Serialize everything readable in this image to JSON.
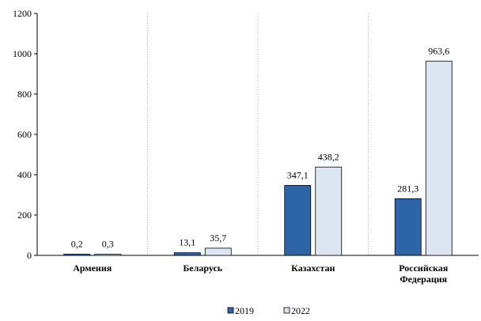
{
  "chart_data": {
    "type": "bar",
    "categories": [
      [
        "Армения"
      ],
      [
        "Беларусь"
      ],
      [
        "Казахстан"
      ],
      [
        "Российская",
        "Федерация"
      ]
    ],
    "series": [
      {
        "name": "2019",
        "values": [
          0.2,
          13.1,
          347.1,
          281.3
        ],
        "labels": [
          "0,2",
          "13,1",
          "347,1",
          "281,3"
        ],
        "color": "#2e64a8"
      },
      {
        "name": "2022",
        "values": [
          0.3,
          35.7,
          438.2,
          963.6
        ],
        "labels": [
          "0,3",
          "35,7",
          "438,2",
          "963,6"
        ],
        "color": "#dce6f2"
      }
    ],
    "ylim": [
      0,
      1200
    ],
    "yticks": [
      0,
      200,
      400,
      600,
      800,
      1000,
      1200
    ],
    "grid": "vertical dashed category separators",
    "legend": "bottom"
  }
}
